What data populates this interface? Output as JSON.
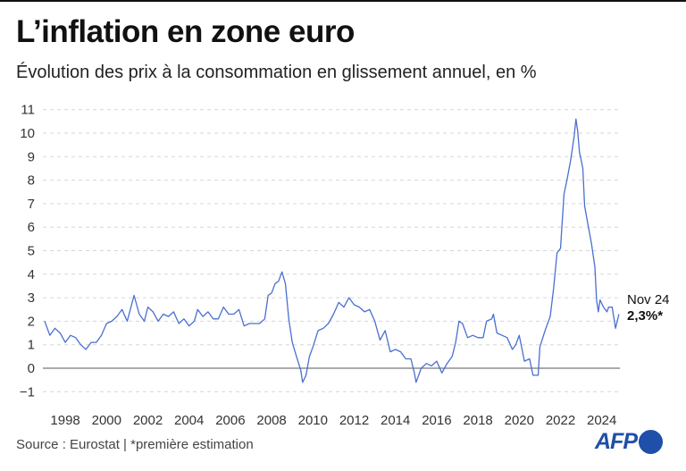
{
  "title": "L’inflation en zone euro",
  "subtitle": "Évolution des prix à la consommation en glissement annuel, en %",
  "source": "Source : Eurostat | *première estimation",
  "logo": "AFP",
  "chart_data": {
    "type": "line",
    "title": "L’inflation en zone euro",
    "subtitle": "Évolution des prix à la consommation en glissement annuel, en %",
    "xlabel": "",
    "ylabel": "",
    "ylim": [
      -1,
      11
    ],
    "xlim": [
      "1997-01",
      "2024-11"
    ],
    "yticks": [
      "−1",
      "0",
      "1",
      "2",
      "3",
      "4",
      "5",
      "6",
      "7",
      "8",
      "9",
      "10",
      "11"
    ],
    "ytick_values": [
      -1,
      0,
      1,
      2,
      3,
      4,
      5,
      6,
      7,
      8,
      9,
      10,
      11
    ],
    "xticks": [
      "1998",
      "2000",
      "2002",
      "2004",
      "2006",
      "2008",
      "2010",
      "2012",
      "2014",
      "2016",
      "2018",
      "2020",
      "2022",
      "2024"
    ],
    "grid": true,
    "line_color": "#4a6fd0",
    "annotation": {
      "label": "Nov 24",
      "value": "2,3%*"
    },
    "series": [
      {
        "x": [
          "1997-01",
          "1997-04",
          "1997-07",
          "1997-10",
          "1998-01",
          "1998-04",
          "1998-07",
          "1998-10",
          "1999-01",
          "1999-04",
          "1999-07",
          "1999-10",
          "2000-01",
          "2000-04",
          "2000-07",
          "2000-10",
          "2001-01",
          "2001-05",
          "2001-08",
          "2001-11",
          "2002-01",
          "2002-04",
          "2002-07",
          "2002-10",
          "2003-01",
          "2003-04",
          "2003-07",
          "2003-10",
          "2004-01",
          "2004-04",
          "2004-06",
          "2004-09",
          "2004-12",
          "2005-03",
          "2005-06",
          "2005-09",
          "2005-12",
          "2006-03",
          "2006-06",
          "2006-09",
          "2006-12",
          "2007-03",
          "2007-06",
          "2007-09",
          "2007-11",
          "2008-01",
          "2008-03",
          "2008-05",
          "2008-07",
          "2008-09",
          "2008-11",
          "2009-01",
          "2009-03",
          "2009-06",
          "2009-07",
          "2009-09",
          "2009-11",
          "2010-01",
          "2010-04",
          "2010-07",
          "2010-10",
          "2011-01",
          "2011-04",
          "2011-07",
          "2011-10",
          "2012-01",
          "2012-04",
          "2012-07",
          "2012-10",
          "2013-01",
          "2013-04",
          "2013-07",
          "2013-10",
          "2014-01",
          "2014-04",
          "2014-07",
          "2014-10",
          "2014-12",
          "2015-01",
          "2015-04",
          "2015-07",
          "2015-10",
          "2016-01",
          "2016-04",
          "2016-07",
          "2016-10",
          "2016-12",
          "2017-02",
          "2017-04",
          "2017-07",
          "2017-10",
          "2018-01",
          "2018-04",
          "2018-06",
          "2018-09",
          "2018-10",
          "2018-12",
          "2019-03",
          "2019-06",
          "2019-09",
          "2019-11",
          "2020-01",
          "2020-04",
          "2020-07",
          "2020-09",
          "2020-12",
          "2021-01",
          "2021-04",
          "2021-07",
          "2021-09",
          "2021-11",
          "2022-01",
          "2022-03",
          "2022-05",
          "2022-07",
          "2022-09",
          "2022-10",
          "2022-11",
          "2022-12",
          "2023-02",
          "2023-03",
          "2023-05",
          "2023-07",
          "2023-09",
          "2023-10",
          "2023-11",
          "2023-12",
          "2024-02",
          "2024-04",
          "2024-05",
          "2024-07",
          "2024-09",
          "2024-10",
          "2024-11"
        ],
        "values": [
          2.0,
          1.4,
          1.7,
          1.5,
          1.1,
          1.4,
          1.3,
          1.0,
          0.8,
          1.1,
          1.1,
          1.4,
          1.9,
          2.0,
          2.2,
          2.5,
          2.0,
          3.1,
          2.3,
          2.0,
          2.6,
          2.4,
          2.0,
          2.3,
          2.2,
          2.4,
          1.9,
          2.1,
          1.8,
          2.0,
          2.5,
          2.2,
          2.4,
          2.1,
          2.1,
          2.6,
          2.3,
          2.3,
          2.5,
          1.8,
          1.9,
          1.9,
          1.9,
          2.1,
          3.1,
          3.2,
          3.6,
          3.7,
          4.1,
          3.6,
          2.1,
          1.1,
          0.6,
          -0.1,
          -0.6,
          -0.3,
          0.5,
          0.9,
          1.6,
          1.7,
          1.9,
          2.3,
          2.8,
          2.6,
          3.0,
          2.7,
          2.6,
          2.4,
          2.5,
          2.0,
          1.2,
          1.6,
          0.7,
          0.8,
          0.7,
          0.4,
          0.4,
          -0.2,
          -0.6,
          0.0,
          0.2,
          0.1,
          0.3,
          -0.2,
          0.2,
          0.5,
          1.1,
          2.0,
          1.9,
          1.3,
          1.4,
          1.3,
          1.3,
          2.0,
          2.1,
          2.3,
          1.5,
          1.4,
          1.3,
          0.8,
          1.0,
          1.4,
          0.3,
          0.4,
          -0.3,
          -0.3,
          0.9,
          1.6,
          2.2,
          3.4,
          4.9,
          5.1,
          7.4,
          8.1,
          8.9,
          9.9,
          10.6,
          10.1,
          9.2,
          8.5,
          6.9,
          6.1,
          5.3,
          4.3,
          2.9,
          2.4,
          2.9,
          2.6,
          2.4,
          2.6,
          2.6,
          1.7,
          2.0,
          2.3
        ]
      }
    ]
  }
}
